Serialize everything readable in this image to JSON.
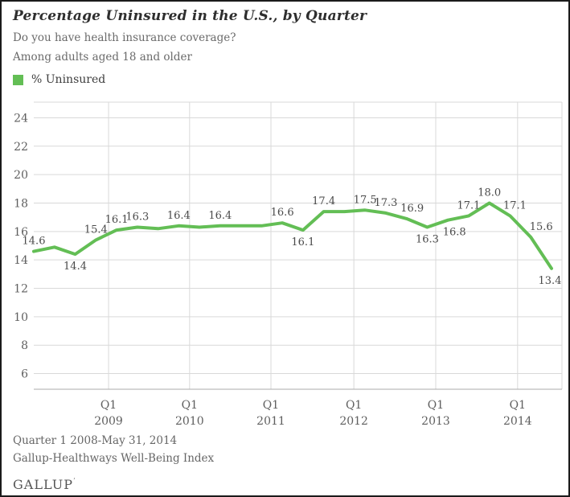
{
  "header": {
    "title": "Percentage Uninsured in the U.S., by Quarter",
    "subtitle1": "Do you have health insurance coverage?",
    "subtitle2": "Among adults aged 18 and older"
  },
  "legend": {
    "label": "% Uninsured",
    "color": "#63BE55"
  },
  "chart_data": {
    "type": "line",
    "title": "Percentage Uninsured in the U.S., by Quarter",
    "series_name": "% Uninsured",
    "line_color": "#63BE55",
    "grid_color": "#d9d9d9",
    "axis_color": "#ababab",
    "tick_label_color": "#5f5f5f",
    "data_label_color": "#4a4a4a",
    "ylim": [
      4.9,
      25.1
    ],
    "yticks": [
      6,
      8,
      10,
      12,
      14,
      16,
      18,
      20,
      22,
      24
    ],
    "x_axis_gridline_labels": [
      {
        "line1": "Q1",
        "line2": "2009"
      },
      {
        "line1": "Q1",
        "line2": "2010"
      },
      {
        "line1": "Q1",
        "line2": "2011"
      },
      {
        "line1": "Q1",
        "line2": "2012"
      },
      {
        "line1": "Q1",
        "line2": "2013"
      },
      {
        "line1": "Q1",
        "line2": "2014"
      }
    ],
    "points": [
      {
        "x": "Q1 2008",
        "v": 14.6,
        "label": "14.6",
        "pos": "above"
      },
      {
        "x": "Q2 2008",
        "v": 14.9,
        "label": null,
        "pos": null
      },
      {
        "x": "Q3 2008",
        "v": 14.4,
        "label": "14.4",
        "pos": "below"
      },
      {
        "x": "Q4 2008",
        "v": 15.4,
        "label": "15.4",
        "pos": "above"
      },
      {
        "x": "Q1 2009",
        "v": 16.1,
        "label": "16.1",
        "pos": "above"
      },
      {
        "x": "Q2 2009",
        "v": 16.3,
        "label": "16.3",
        "pos": "above"
      },
      {
        "x": "Q3 2009",
        "v": 16.2,
        "label": null,
        "pos": null
      },
      {
        "x": "Q4 2009",
        "v": 16.4,
        "label": "16.4",
        "pos": "above"
      },
      {
        "x": "Q1 2010",
        "v": 16.3,
        "label": null,
        "pos": null
      },
      {
        "x": "Q2 2010",
        "v": 16.4,
        "label": "16.4",
        "pos": "above"
      },
      {
        "x": "Q3 2010",
        "v": 16.4,
        "label": null,
        "pos": null
      },
      {
        "x": "Q4 2010",
        "v": 16.4,
        "label": null,
        "pos": null
      },
      {
        "x": "Q1 2011",
        "v": 16.6,
        "label": "16.6",
        "pos": "above"
      },
      {
        "x": "Q2 2011",
        "v": 16.1,
        "label": "16.1",
        "pos": "below"
      },
      {
        "x": "Q3 2011",
        "v": 17.4,
        "label": "17.4",
        "pos": "above"
      },
      {
        "x": "Q4 2011",
        "v": 17.4,
        "label": null,
        "pos": null
      },
      {
        "x": "Q1 2012",
        "v": 17.5,
        "label": "17.5",
        "pos": "above"
      },
      {
        "x": "Q2 2012",
        "v": 17.3,
        "label": "17.3",
        "pos": "above"
      },
      {
        "x": "Q3 2012",
        "v": 16.9,
        "label": "16.9",
        "pos": "above",
        "dx": 7
      },
      {
        "x": "Q4 2012",
        "v": 16.3,
        "label": "16.3",
        "pos": "below"
      },
      {
        "x": "Q1 2013",
        "v": 16.8,
        "label": "16.8",
        "pos": "below",
        "dx": 8
      },
      {
        "x": "Q2 2013",
        "v": 17.1,
        "label": "17.1",
        "pos": "above"
      },
      {
        "x": "Q3 2013",
        "v": 18.0,
        "label": "18.0",
        "pos": "above"
      },
      {
        "x": "Q4 2013",
        "v": 17.1,
        "label": "17.1",
        "pos": "above",
        "dx": 6
      },
      {
        "x": "Q1 2014",
        "v": 15.6,
        "label": "15.6",
        "pos": "above",
        "dx": 13
      },
      {
        "x": "Q2 2014 (through May 31)",
        "v": 13.4,
        "label": "13.4",
        "pos": "below",
        "dx": -2
      }
    ]
  },
  "footer": {
    "line1": "Quarter 1 2008-May 31, 2014",
    "line2": "Gallup-Healthways Well-Being Index",
    "logo": "GALLUP"
  }
}
